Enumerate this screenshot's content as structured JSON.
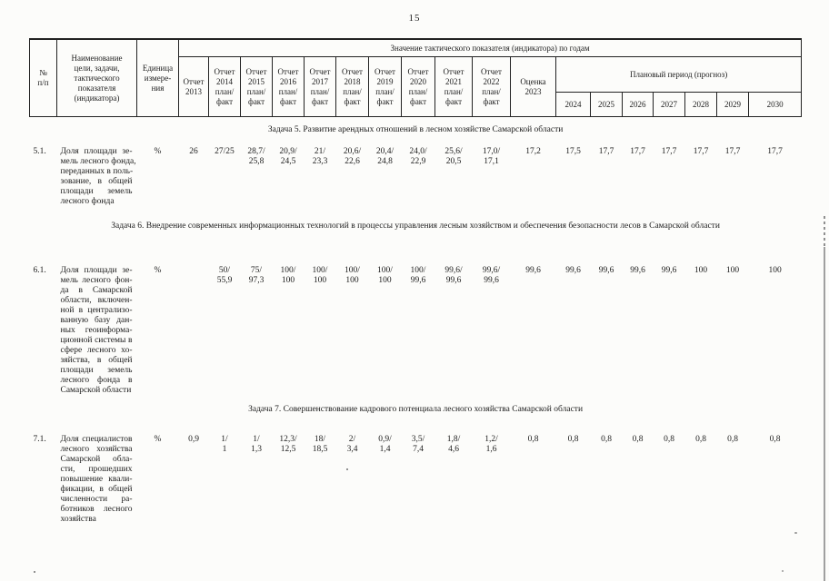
{
  "page": {
    "number": "15"
  },
  "t": {
    "h": {
      "num": "№\nп/п",
      "name": "Наименование\nцели, задачи,\nтактического\nпоказателя\n(индикатора)",
      "unit": "Единица\nизмере-\nния",
      "values_span": "Значение тактического показателя (индикатора) по годам",
      "reports": [
        "Отчет\n2013",
        "Отчет\n2014\nплан/\nфакт",
        "Отчет\n2015\nплан/\nфакт",
        "Отчет\n2016\nплан/\nфакт",
        "Отчет\n2017\nплан/\nфакт",
        "Отчет\n2018\nплан/\nфакт",
        "Отчет\n2019\nплан/\nфакт",
        "Отчет\n2020\nплан/\nфакт",
        "Отчет\n2021\nплан/\nфакт",
        "Отчет\n2022\nплан/\nфакт"
      ],
      "estimate": "Оценка\n2023",
      "plan_span": "Плановый период (прогноз)",
      "years": [
        "2024",
        "2025",
        "2026",
        "2027",
        "2028",
        "2029",
        "2030"
      ]
    },
    "sections": [
      {
        "title": "Задача 5. Развитие арендных отношений в лесном хозяйстве Самарской области",
        "row": {
          "num": "5.1.",
          "name": "Доля площади зе-\nмель лесного фонда,\nпереданных в поль-\nзование, в общей\nплощади земель\nлесного фонда",
          "unit": "%",
          "values": [
            "26",
            "27/25",
            "28,7/\n25,8",
            "20,9/\n24,5",
            "21/\n23,3",
            "20,6/\n22,6",
            "20,4/\n24,8",
            "24,0/\n22,9",
            "25,6/\n20,5",
            "17,0/\n17,1",
            "17,2",
            "17,5",
            "17,7",
            "17,7",
            "17,7",
            "17,7",
            "17,7",
            "17,7"
          ]
        }
      },
      {
        "title": "Задача 6. Внедрение современных информационных технологий в процессы управления лесным хозяйством и обеспечения безопасности лесов в Самарской области",
        "row": {
          "num": "6.1.",
          "name": "Доля площади зе-\nмель лесного фон-\nда в Самарской\nобласти, включен-\nной в централизо-\nванную базу дан-\nных геоинформа-\nционной системы в\nсфере лесного хо-\nзяйства, в общей\nплощади земель\nлесного фонда в\nСамарской области",
          "unit": "%",
          "values": [
            "",
            "50/\n55,9",
            "75/\n97,3",
            "100/\n100",
            "100/\n100",
            "100/\n100",
            "100/\n100",
            "100/\n99,6",
            "99,6/\n99,6",
            "99,6/\n99,6",
            "99,6",
            "99,6",
            "99,6",
            "99,6",
            "99,6",
            "100",
            "100",
            "100"
          ]
        }
      },
      {
        "title": "Задача 7. Совершенствование кадрового потенциала лесного хозяйства Самарской области",
        "row": {
          "num": "7.1.",
          "name": "Доля специалистов\nлесного хозяйства\nСамарской обла-\nсти, прошедших\nповышение квали-\nфикации, в общей\nчисленности ра-\nботников лесного\nхозяйства",
          "unit": "%",
          "values": [
            "0,9",
            "1/\n1",
            "1/\n1,3",
            "12,3/\n12,5",
            "18/\n18,5",
            "2/\n3,4",
            "0,9/\n1,4",
            "3,5/\n7,4",
            "1,8/\n4,6",
            "1,2/\n1,6",
            "0,8",
            "0,8",
            "0,8",
            "0,8",
            "0,8",
            "0,8",
            "0,8",
            "0,8"
          ]
        }
      }
    ]
  }
}
